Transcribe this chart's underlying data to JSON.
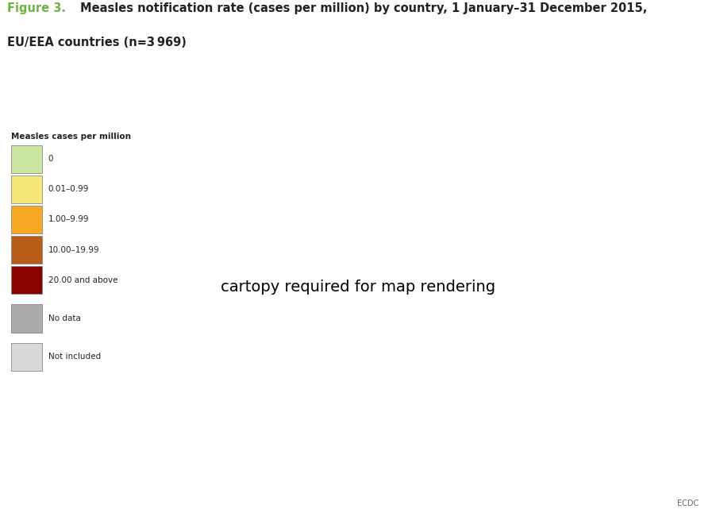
{
  "title_figure": "Figure 3.",
  "title_main": "Measles notification rate (cases per million) by country, 1 January–31 December 2015,\nEU/EEA countries (n=3 969)",
  "legend_title": "Measles cases per million",
  "legend_items": [
    {
      "label": "0",
      "color": "#c8e6a0"
    },
    {
      "label": "0.01–0.99",
      "color": "#f5e87a"
    },
    {
      "label": "1.00–9.99",
      "color": "#f5a623"
    },
    {
      "label": "10.00–19.99",
      "color": "#b85c1a"
    },
    {
      "label": "20.00 and above",
      "color": "#8b0000"
    },
    {
      "label": "No data",
      "color": "#aaaaaa"
    },
    {
      "label": "Not included",
      "color": "#d8d8d8"
    }
  ],
  "country_colors": {
    "IS": "#c8e6a0",
    "PT": "#c8e6a0",
    "ES": "#c8e6a0",
    "BG": "#c8e6a0",
    "GR": "#c8e6a0",
    "CY": "#c8e6a0",
    "LU": "#c8e6a0",
    "EE": "#f5e87a",
    "LV": "#f5e87a",
    "DK": "#f5e87a",
    "FI": "#f5e87a",
    "IE": "#f5a623",
    "GB": "#f5a623",
    "NO": "#f5a623",
    "SE": "#f5a623",
    "PL": "#f5a623",
    "NL": "#f5a623",
    "BE": "#f5a623",
    "FR": "#f5a623",
    "CH": "#f5a623",
    "CZ": "#f5a623",
    "SK": "#f5a623",
    "HU": "#f5a623",
    "RO": "#f5a623",
    "IT": "#f5a623",
    "MT": "#f5a623",
    "LT": "#b85c1a",
    "DE": "#8b0000",
    "AT": "#8b0000",
    "SI": "#8b0000",
    "HR": "#8b0000",
    "BA": "#aaaaaa",
    "RS": "#d8d8d8",
    "ME": "#d8d8d8",
    "MK": "#d8d8d8",
    "AL": "#d8d8d8",
    "TR": "#d8d8d8",
    "UA": "#d8d8d8",
    "BY": "#d8d8d8",
    "MD": "#d8d8d8",
    "RU": "#d8d8d8",
    "GE": "#d8d8d8",
    "AM": "#d8d8d8",
    "AZ": "#d8d8d8",
    "MA": "#d8d8d8",
    "DZ": "#d8d8d8",
    "TN": "#d8d8d8",
    "LY": "#d8d8d8",
    "EG": "#d8d8d8",
    "SY": "#d8d8d8",
    "IQ": "#d8d8d8",
    "JO": "#d8d8d8",
    "IL": "#d8d8d8",
    "LB": "#d8d8d8",
    "SA": "#d8d8d8",
    "XK": "#d8d8d8",
    "LI": "#f5a623",
    "AD": "#c8e6a0"
  },
  "ocean_color": "#b8d4e8",
  "figure_background": "#ffffff",
  "border_color": "#888888",
  "title_color_bold": "#6db33f",
  "title_color_normal": "#222222",
  "ecdc_label": "ECDC"
}
